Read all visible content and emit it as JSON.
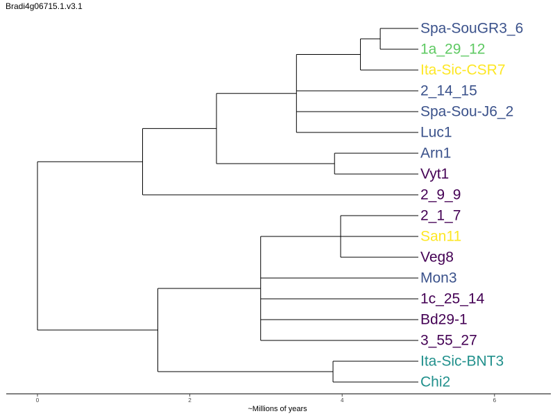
{
  "title": "Bradi4g06715.1.v3.1",
  "x_axis": {
    "label": "~Millions of years",
    "ticks": [
      "0",
      "2",
      "4",
      "6"
    ]
  },
  "tree": {
    "name": "root",
    "age": 0,
    "children": [
      {
        "name": "cladeA",
        "age": 1.38,
        "children": [
          {
            "name": "cladeA1",
            "age": 2.35,
            "children": [
              {
                "name": "cladeA1a",
                "age": 3.4,
                "children": [
                  {
                    "name": "n_spa_1a_ita",
                    "age": 4.24,
                    "children": [
                      {
                        "name": "n_spa_1a",
                        "age": 4.5,
                        "children": [
                          {
                            "label": "Spa-SouGR3_6",
                            "color": "#3b528b",
                            "age": 5.0
                          },
                          {
                            "label": "1a_29_12",
                            "color": "#5ec962",
                            "age": 5.0
                          }
                        ]
                      },
                      {
                        "label": "Ita-Sic-CSR7",
                        "color": "#fde725",
                        "age": 5.0
                      }
                    ]
                  },
                  {
                    "label": "2_14_15",
                    "color": "#3b528b",
                    "age": 5.0
                  },
                  {
                    "label": "Spa-Sou-J6_2",
                    "color": "#3b528b",
                    "age": 5.0
                  },
                  {
                    "label": "Luc1",
                    "color": "#3b528b",
                    "age": 5.0
                  }
                ]
              },
              {
                "name": "n_arn_vyt",
                "age": 3.9,
                "children": [
                  {
                    "label": "Arn1",
                    "color": "#3b528b",
                    "age": 5.0
                  },
                  {
                    "label": "Vyt1",
                    "color": "#440154",
                    "age": 5.0
                  }
                ]
              }
            ]
          },
          {
            "label": "2_9_9",
            "color": "#440154",
            "age": 5.0
          }
        ]
      },
      {
        "name": "cladeB",
        "age": 1.58,
        "children": [
          {
            "name": "cladeB1",
            "age": 2.93,
            "children": [
              {
                "name": "n_217_veg",
                "age": 3.98,
                "children": [
                  {
                    "label": "2_1_7",
                    "color": "#440154",
                    "age": 5.0
                  },
                  {
                    "label": "San11",
                    "color": "#fde725",
                    "age": 5.0
                  },
                  {
                    "label": "Veg8",
                    "color": "#440154",
                    "age": 5.0
                  }
                ]
              },
              {
                "label": "Mon3",
                "color": "#3b528b",
                "age": 5.0
              },
              {
                "label": "1c_25_14",
                "color": "#440154",
                "age": 5.0
              },
              {
                "label": "Bd29-1",
                "color": "#440154",
                "age": 5.0
              },
              {
                "label": "3_55_27",
                "color": "#440154",
                "age": 5.0
              }
            ]
          },
          {
            "name": "n_ita_chi",
            "age": 3.88,
            "children": [
              {
                "label": "Ita-Sic-BNT3",
                "color": "#21908c",
                "age": 5.0
              },
              {
                "label": "Chi2",
                "color": "#21908c",
                "age": 5.0
              }
            ]
          }
        ]
      }
    ]
  }
}
